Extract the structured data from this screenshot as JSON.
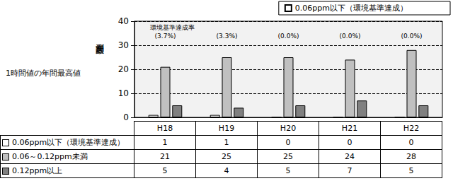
{
  "chart_data": {
    "type": "bar",
    "title": "1時間値の年間最高値",
    "ylabel": "測定局数",
    "categories": [
      "H18",
      "H19",
      "H20",
      "H21",
      "H22"
    ],
    "series": [
      {
        "name": "0.06ppm以下（環境基準達成）",
        "color": "#ffffff",
        "values": [
          1,
          1,
          0,
          0,
          0
        ]
      },
      {
        "name": "0.06～0.12ppm未満",
        "color": "#c0c0c0",
        "values": [
          21,
          25,
          25,
          24,
          28
        ]
      },
      {
        "name": "0.12ppm以上",
        "color": "#808080",
        "values": [
          5,
          4,
          5,
          7,
          5
        ]
      }
    ],
    "annotations": {
      "title": "環境基準達成率",
      "labels": [
        "(3.7%)",
        "(3.3%)",
        "(0.0%)",
        "(0.0%)",
        "(0.0%)"
      ]
    },
    "ylim": [
      0,
      40
    ],
    "yticks": [
      0,
      10,
      20,
      30,
      40
    ],
    "grid": true,
    "legend": "top-right"
  }
}
